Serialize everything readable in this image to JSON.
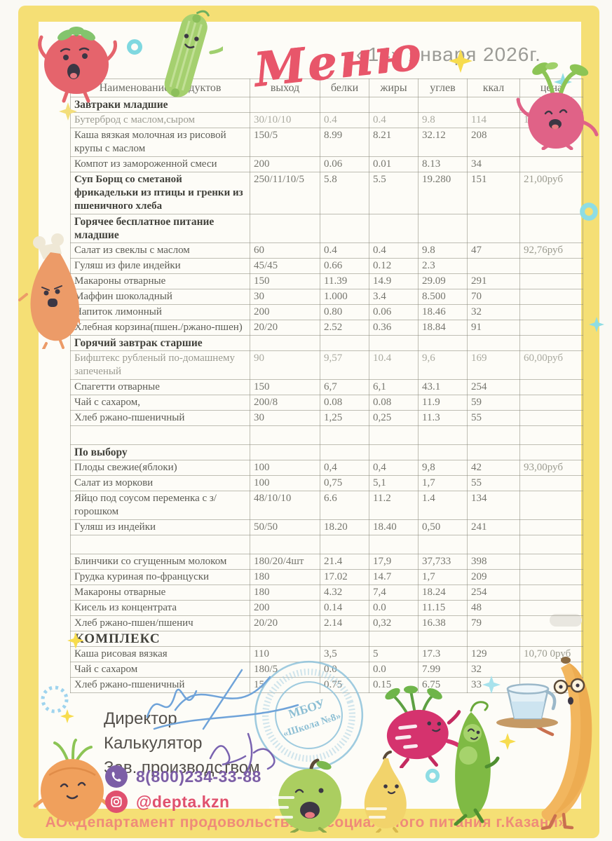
{
  "title": "Меню",
  "date": "«14» января 2026г.",
  "table": {
    "headers": [
      "Наименование продуктов",
      "выход",
      "белки",
      "жиры",
      "углев",
      "ккал",
      "цена"
    ],
    "rows": [
      {
        "section": true,
        "cells": [
          "Завтраки младшие",
          "",
          "",
          "",
          "",
          "",
          ""
        ]
      },
      {
        "faint": true,
        "cells": [
          "Бутерброд с маслом,сыром",
          "30/10/10",
          "0.4",
          "0.4",
          "9.8",
          "114",
          "15,60руб"
        ]
      },
      {
        "cells": [
          "Каша вязкая молочная из рисовой крупы с маслом",
          "150/5",
          "8.99",
          "8.21",
          "32.12",
          "208",
          ""
        ]
      },
      {
        "cells": [
          "Компот из замороженной смеси",
          "200",
          "0.06",
          "0.01",
          "8.13",
          "34",
          ""
        ]
      },
      {
        "boldname": true,
        "cells": [
          "Суп Борщ  со сметаной фрикадельки из птицы и гренки из пшеничного хлеба",
          "250/11/10/5",
          "5.8",
          "5.5",
          "19.280",
          "151",
          "21,00руб"
        ]
      },
      {
        "section": true,
        "cells": [
          "Горячее бесплатное питание младшие",
          "",
          "",
          "",
          "",
          "",
          ""
        ]
      },
      {
        "cells": [
          "Салат из свеклы с маслом",
          "60",
          "0.4",
          "0.4",
          "9.8",
          "47",
          "92,76руб"
        ]
      },
      {
        "cells": [
          "Гуляш из филе индейки",
          "45/45",
          "0.66",
          "0.12",
          "2.3",
          "",
          ""
        ]
      },
      {
        "cells": [
          "Макароны отварные",
          "150",
          "11.39",
          "14.9",
          "29.09",
          "291",
          ""
        ]
      },
      {
        "cells": [
          "Маффин  шоколадный",
          "30",
          "1.000",
          "3.4",
          "8.500",
          "70",
          ""
        ]
      },
      {
        "cells": [
          "Напиток лимонный",
          "200",
          "0.80",
          "0.06",
          "18.46",
          "32",
          ""
        ]
      },
      {
        "cells": [
          "Хлебная корзина(пшен./ржано-пшен)",
          "20/20",
          "2.52",
          "0.36",
          "18.84",
          "91",
          ""
        ]
      },
      {
        "section": true,
        "cells": [
          "Горячий завтрак старшие",
          "",
          "",
          "",
          "",
          "",
          ""
        ]
      },
      {
        "faint": true,
        "cells": [
          "Бифштекс рубленый по-домашнему запеченый",
          "90",
          "9,57",
          "10.4",
          "9,6",
          "169",
          "60,00руб"
        ]
      },
      {
        "cells": [
          "Спагетти отварные",
          "150",
          "6,7",
          "6,1",
          "43.1",
          "254",
          ""
        ]
      },
      {
        "cells": [
          "Чай с сахаром,",
          "200/8",
          "0.08",
          "0.08",
          "11.9",
          "59",
          ""
        ]
      },
      {
        "cells": [
          "Хлеб ржано-пшеничный",
          "30",
          "1,25",
          "0,25",
          "11.3",
          "55",
          ""
        ]
      },
      {
        "empty": true,
        "cells": [
          "",
          "",
          "",
          "",
          "",
          "",
          ""
        ]
      },
      {
        "section": true,
        "cells": [
          "По выбору",
          "",
          "",
          "",
          "",
          "",
          ""
        ]
      },
      {
        "cells": [
          "Плоды свежие(яблоки)",
          "100",
          "0,4",
          "0,4",
          "9,8",
          "42",
          "93,00руб"
        ]
      },
      {
        "cells": [
          "Салат из моркови",
          "100",
          "0,75",
          "5,1",
          "1,7",
          "55",
          ""
        ]
      },
      {
        "cells": [
          "Яйцо под соусом переменка с з/горошком",
          "48/10/10",
          "6.6",
          "11.2",
          "1.4",
          "134",
          ""
        ]
      },
      {
        "cells": [
          "Гуляш из индейки",
          "50/50",
          "18.20",
          "18.40",
          "0,50",
          "241",
          ""
        ]
      },
      {
        "empty": true,
        "cells": [
          "",
          "",
          "",
          "",
          "",
          "",
          ""
        ]
      },
      {
        "cells": [
          "Блинчики со сгущенным молоком",
          "180/20/4шт",
          "21.4",
          "17,9",
          "37,733",
          "398",
          ""
        ]
      },
      {
        "cells": [
          "Грудка куриная по-француски",
          "180",
          "17.02",
          "14.7",
          "1,7",
          "209",
          ""
        ]
      },
      {
        "cells": [
          "Макароны отварные",
          "180",
          "4.32",
          "7,4",
          "18.24",
          "254",
          ""
        ]
      },
      {
        "cells": [
          "Кисель из концентрата",
          "200",
          "0.14",
          "0.0",
          "11.15",
          "48",
          ""
        ]
      },
      {
        "cells": [
          "Хлеб ржано-пшен/пшенич",
          "20/20",
          "2.14",
          "0,32",
          "16.38",
          "79",
          ""
        ]
      },
      {
        "section": true,
        "big": true,
        "cells": [
          "КОМПЛЕКС",
          "",
          "",
          "",
          "",
          "",
          ""
        ]
      },
      {
        "cells": [
          "Каша рисовая вязкая",
          "110",
          "3,5",
          "5",
          "17.3",
          "129",
          "10,70 0руб"
        ]
      },
      {
        "cells": [
          "Чай с сахаром",
          "180/5",
          "0.0",
          "0.0",
          "7.99",
          "32",
          ""
        ]
      },
      {
        "cells": [
          "Хлеб ржано-пшеничный",
          "15",
          "0.75",
          "0.15",
          "6.75",
          "33",
          ""
        ]
      }
    ]
  },
  "footer": {
    "signatories": [
      "Директор",
      "Калькулятор",
      "Зав. производством"
    ],
    "phone": "8(800)234-33-88",
    "instagram": "@depta.kzn",
    "stamp_line1": "МБОУ",
    "stamp_line2": "«Школа №8»",
    "org": "АО«Департамент продовольствия и социального питания г.Казани»"
  },
  "colors": {
    "frame_yellow": "#f5df75",
    "title_pink": "#e8566a",
    "org_salmon": "#ef8b79",
    "phone_purple": "#7c5ea6",
    "instagram_pink": "#e0516e",
    "stamp_blue": "#8fc3db"
  }
}
